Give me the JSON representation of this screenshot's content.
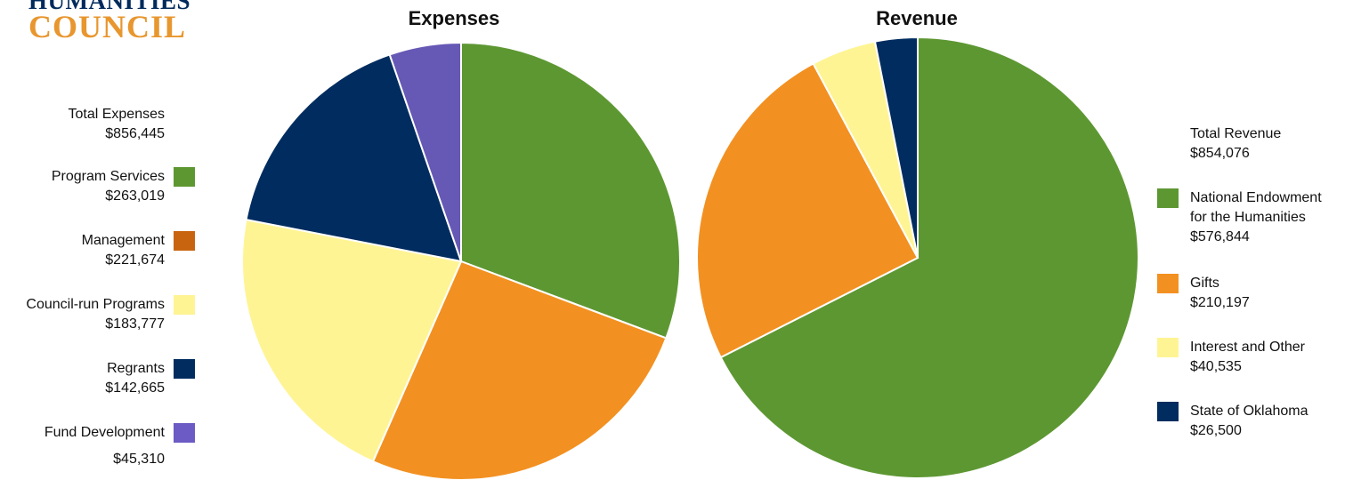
{
  "logo": {
    "line1": "HUMANITIES",
    "line2": "COUNCIL"
  },
  "colors": {
    "program_services": "#5d9732",
    "management": "#c86410",
    "management_slice": "#f29121",
    "council_run": "#fff494",
    "regrants": "#002c5f",
    "fund_development": "#6658b5",
    "fund_development_swatch": "#6c5bc4",
    "neh": "#5d9732",
    "gifts": "#f29121",
    "interest": "#fff494",
    "state": "#002c5f"
  },
  "chart_data": [
    {
      "type": "pie",
      "title": "Expenses",
      "total_label": "Total Expenses",
      "total_value": "$856,445",
      "slices": [
        {
          "name": "Program Services",
          "value": 263019,
          "display": "$263,019"
        },
        {
          "name": "Management",
          "value": 221674,
          "display": "$221,674"
        },
        {
          "name": "Council-run Programs",
          "value": 183777,
          "display": "$183,777"
        },
        {
          "name": "Regrants",
          "value": 142665,
          "display": "$142,665"
        },
        {
          "name": "Fund Development",
          "value": 45310,
          "display": "$45,310"
        }
      ],
      "legend_placement": "left"
    },
    {
      "type": "pie",
      "title": "Revenue",
      "total_label": "Total Revenue",
      "total_value": "$854,076",
      "slices": [
        {
          "name": "National Endowment for the Humanities",
          "name_lines": [
            "National Endowment",
            "for the Humanities"
          ],
          "value": 576844,
          "display": "$576,844"
        },
        {
          "name": "Gifts",
          "value": 210197,
          "display": "$210,197"
        },
        {
          "name": "Interest and Other",
          "value": 40535,
          "display": "$40,535"
        },
        {
          "name": "State of Oklahoma",
          "value": 26500,
          "display": "$26,500"
        }
      ],
      "legend_placement": "right"
    }
  ]
}
